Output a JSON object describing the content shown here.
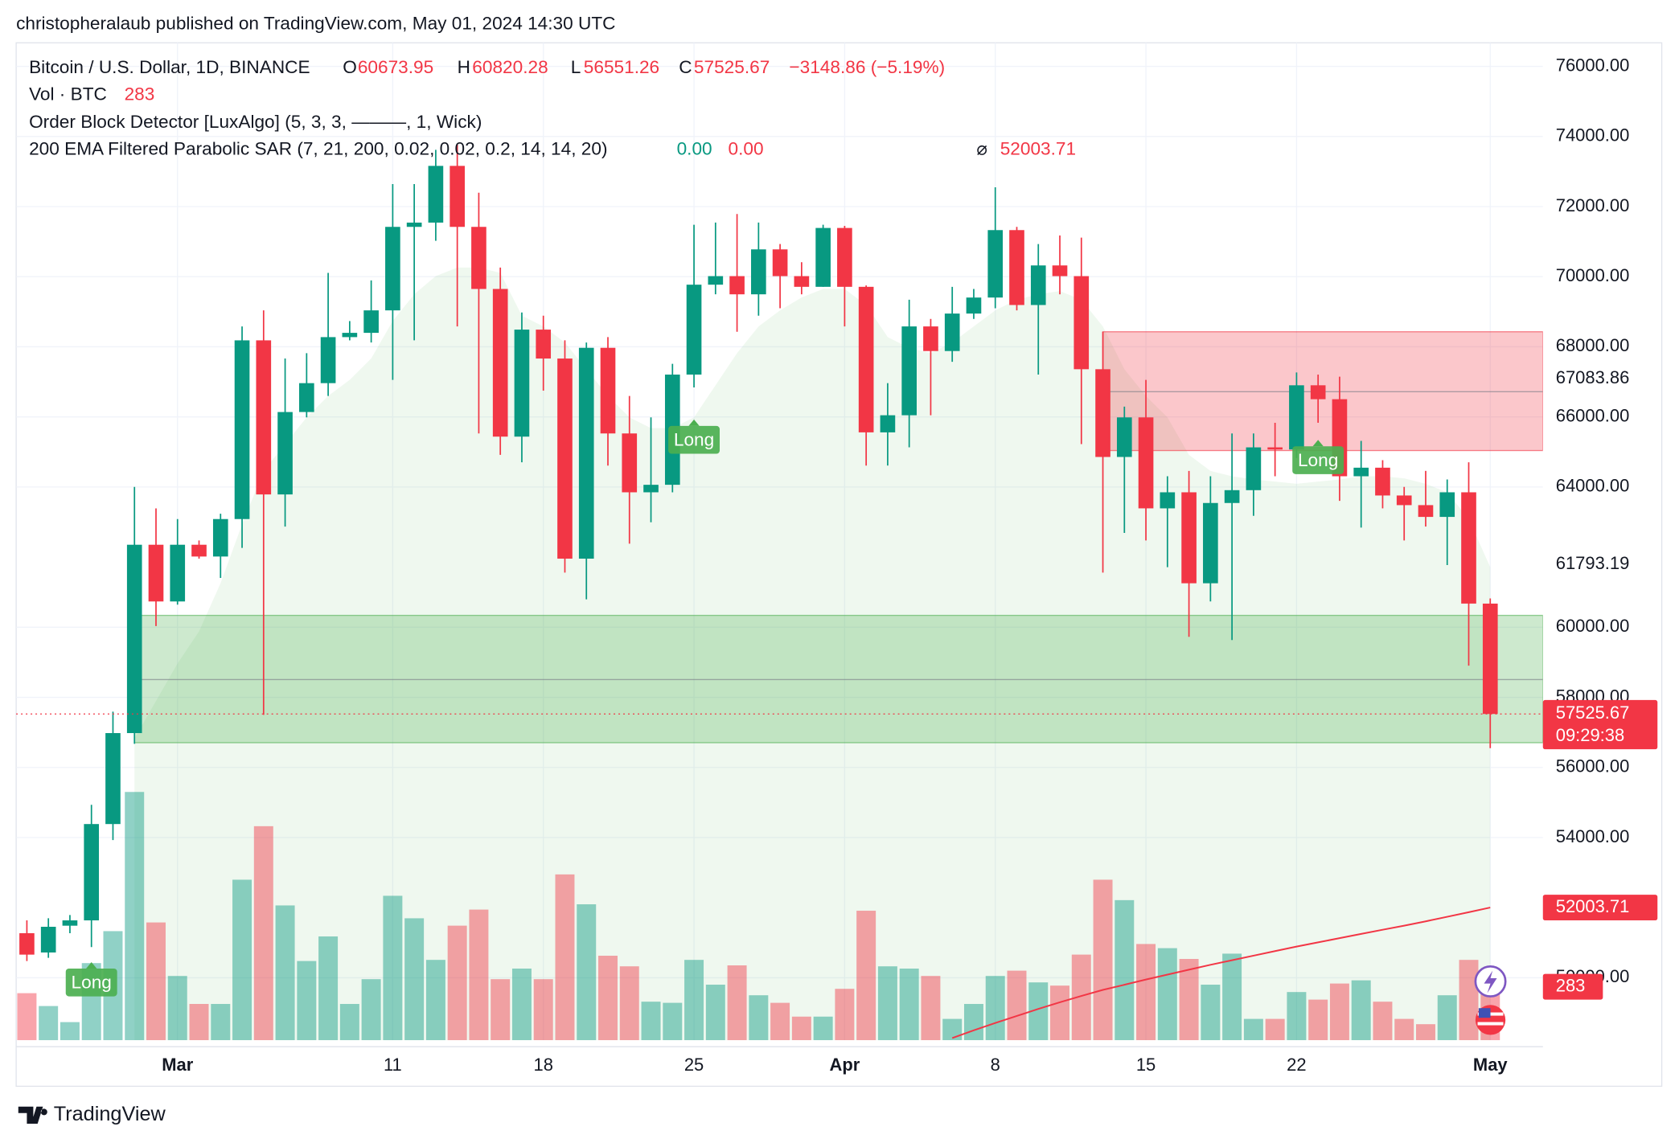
{
  "published": "christopheralaub published on TradingView.com, May 01, 2024 14:30 UTC",
  "chart_data": {
    "type": "candlestick",
    "title": "Bitcoin / U.S. Dollar, 1D, BINANCE",
    "ohlc_prefixes": [
      "O",
      "H",
      "L",
      "C"
    ],
    "change_label": "−3148.86 (−5.19%)",
    "categories": [
      null,
      null,
      null,
      null,
      null,
      null,
      null,
      "Mar",
      null,
      null,
      null,
      null,
      null,
      null,
      null,
      null,
      null,
      "11",
      null,
      null,
      null,
      null,
      null,
      null,
      "18",
      null,
      null,
      null,
      null,
      null,
      null,
      "25",
      null,
      null,
      null,
      null,
      null,
      null,
      "Apr",
      null,
      null,
      null,
      null,
      null,
      null,
      "8",
      null,
      null,
      null,
      null,
      null,
      null,
      "15",
      null,
      null,
      null,
      null,
      null,
      null,
      "22",
      null,
      null,
      null,
      null,
      null,
      null,
      null,
      null,
      "May"
    ],
    "open": [
      51271,
      50721,
      51485,
      51637,
      54385,
      56980,
      62353,
      60735,
      62353,
      62017,
      63086,
      68184,
      63788,
      66139,
      66963,
      68276,
      68398,
      69039,
      71421,
      71543,
      73161,
      71421,
      69650,
      65437,
      68490,
      67665,
      61956,
      67971,
      65528,
      63849,
      64063,
      67207,
      69772,
      70016,
      69497,
      70779,
      70016,
      69711,
      71390,
      69711,
      65559,
      66047,
      68581,
      67879,
      68948,
      69405,
      71329,
      69192,
      70321,
      70016,
      67360,
      64857,
      65986,
      63391,
      63849,
      61254,
      63544,
      63910,
      65131,
      65070,
      66902,
      66505,
      64307,
      64551,
      63758,
      63483,
      63147,
      63849,
      60673.95
    ],
    "high": [
      51637,
      51698,
      51790,
      54934,
      57590,
      64002,
      63391,
      63086,
      62475,
      63238,
      68581,
      69039,
      67665,
      67818,
      70108,
      68734,
      69894,
      72642,
      72642,
      73619,
      73771,
      72397,
      70260,
      68978,
      68887,
      68184,
      68123,
      68276,
      66597,
      65986,
      67513,
      71482,
      71543,
      71787,
      71543,
      70932,
      70413,
      71482,
      71450,
      69750,
      66963,
      69344,
      68795,
      69711,
      69650,
      72550,
      71421,
      70932,
      71176,
      71115,
      68429,
      66292,
      67055,
      64307,
      64460,
      64307,
      65528,
      65528,
      65833,
      67268,
      67207,
      67146,
      65315,
      64765,
      64002,
      64460,
      64215,
      64704,
      60820.28
    ],
    "low": [
      50477,
      50569,
      51271,
      50874,
      53927,
      56675,
      60033,
      60643,
      61956,
      61407,
      62262,
      57498,
      62872,
      65986,
      66597,
      68184,
      68123,
      67055,
      68184,
      71024,
      68581,
      65528,
      64918,
      64704,
      66749,
      61559,
      60796,
      64612,
      62384,
      62994,
      63849,
      66841,
      69497,
      68429,
      68887,
      69100,
      69497,
      69711,
      68581,
      64612,
      64612,
      65131,
      66047,
      67573,
      68795,
      69100,
      69039,
      67207,
      69497,
      65223,
      61559,
      62689,
      62475,
      61712,
      59727,
      60735,
      59636,
      63178,
      64307,
      64826,
      65833,
      63605,
      62842,
      63391,
      62475,
      62872,
      61773,
      58903,
      56551.26
    ],
    "close": [
      50660,
      51454,
      51637,
      54385,
      56980,
      62353,
      60735,
      62353,
      62017,
      63086,
      68184,
      63788,
      66139,
      66963,
      68276,
      68398,
      69039,
      71421,
      71543,
      73161,
      71421,
      69650,
      65437,
      68490,
      67665,
      61956,
      67971,
      65528,
      63849,
      64063,
      67207,
      69772,
      70016,
      69497,
      70779,
      70016,
      69711,
      71390,
      69711,
      65559,
      66047,
      68581,
      67879,
      68948,
      69405,
      71329,
      69192,
      70321,
      70016,
      67360,
      64857,
      65986,
      63391,
      63849,
      61254,
      63544,
      63910,
      65131,
      65070,
      66902,
      66505,
      64307,
      64551,
      63758,
      63483,
      63147,
      63849,
      60674.53,
      57525.67
    ],
    "volume": {
      "name": "Vol · BTC",
      "values": [
        249,
        181,
        96,
        408,
        577,
        1313,
        623,
        340,
        192,
        192,
        849,
        1132,
        713,
        419,
        549,
        192,
        323,
        764,
        645,
        425,
        606,
        691,
        323,
        379,
        323,
        877,
        719,
        447,
        391,
        204,
        198,
        425,
        294,
        396,
        238,
        198,
        125,
        125,
        272,
        685,
        391,
        379,
        340,
        113,
        192,
        340,
        368,
        306,
        289,
        453,
        849,
        741,
        509,
        487,
        430,
        294,
        458,
        113,
        113,
        255,
        215,
        300,
        317,
        204,
        113,
        85,
        238,
        425,
        283
      ]
    },
    "indicators": [
      {
        "name": "Order Block Detector [LuxAlgo] (5, 3, 3, ———, 1, Wick)"
      },
      {
        "name": "200 EMA Filtered Parabolic SAR (7, 21, 200, 0.02, 0.02, 0.2, 14, 14, 20)",
        "readouts": [
          "0.00",
          "0.00"
        ]
      }
    ],
    "ema": {
      "symbol": "⌀",
      "color": "#f23645",
      "values": [
        null,
        null,
        null,
        null,
        null,
        null,
        null,
        null,
        null,
        null,
        null,
        null,
        null,
        null,
        null,
        null,
        null,
        null,
        null,
        null,
        null,
        null,
        null,
        null,
        null,
        null,
        null,
        null,
        null,
        null,
        null,
        null,
        null,
        null,
        null,
        null,
        null,
        null,
        null,
        null,
        null,
        null,
        null,
        48280,
        48500,
        48710,
        48910,
        49110,
        49300,
        49480,
        49654,
        49800,
        49950,
        50090,
        50230,
        50370,
        50500,
        50630,
        50760,
        50890,
        51010,
        51130,
        51250,
        51370,
        51485,
        51610,
        51740,
        51870,
        52003.71
      ]
    },
    "sar_fill": [
      null,
      null,
      null,
      null,
      null,
      56827,
      57896,
      58964,
      59880,
      61254,
      62933,
      64460,
      65223,
      65986,
      66597,
      67055,
      67665,
      68734,
      69497,
      70016,
      70260,
      70260,
      70108,
      68887,
      68581,
      68123,
      67360,
      66597,
      65986,
      65681,
      65681,
      65986,
      66902,
      67818,
      68581,
      69039,
      69406,
      69650,
      69650,
      69192,
      68276,
      67971,
      67818,
      68123,
      68581,
      69039,
      69344,
      69497,
      69589,
      69344,
      68581,
      67360,
      66597,
      65986,
      64918,
      64460,
      64307,
      64215,
      64154,
      64093,
      64154,
      64215,
      64307,
      64307,
      64246,
      64093,
      63849,
      63086,
      61712
    ],
    "order_blocks": [
      {
        "top": 68429,
        "mid": 66719,
        "bottom": 65040,
        "start": 50,
        "color": "#f23645"
      },
      {
        "top": 60338,
        "mid": 58506,
        "bottom": 56705,
        "start": 5,
        "color": "#4caf50"
      }
    ],
    "levels": [
      67083.86,
      61793.19
    ],
    "annotations": [
      {
        "text": "Long",
        "index": 3,
        "value": 49866
      },
      {
        "text": "Long",
        "index": 31,
        "value": 65345
      },
      {
        "text": "Long",
        "index": 60,
        "value": 64765
      }
    ],
    "countdown": "09:29:38",
    "colors": {
      "up": "#089981",
      "down": "#f23645"
    },
    "ylim": [
      48217,
      76672
    ],
    "yticks": [
      {
        "value": 76000,
        "label": "76000.00"
      },
      {
        "value": 74000,
        "label": "74000.00"
      },
      {
        "value": 72000,
        "label": "72000.00"
      },
      {
        "value": 70000,
        "label": "70000.00"
      },
      {
        "value": 68000,
        "label": "68000.00"
      },
      {
        "value": 66000,
        "label": "66000.00"
      },
      {
        "value": 64000,
        "label": "64000.00"
      },
      {
        "value": 60000,
        "label": "60000.00"
      },
      {
        "value": 58000,
        "label": "58000.00"
      },
      {
        "value": 56000,
        "label": "56000.00"
      },
      {
        "value": 54000,
        "label": "54000.00"
      },
      {
        "value": 50000,
        "label": "50000.00"
      }
    ],
    "grid": true
  },
  "footer": {
    "brand": "TradingView"
  }
}
